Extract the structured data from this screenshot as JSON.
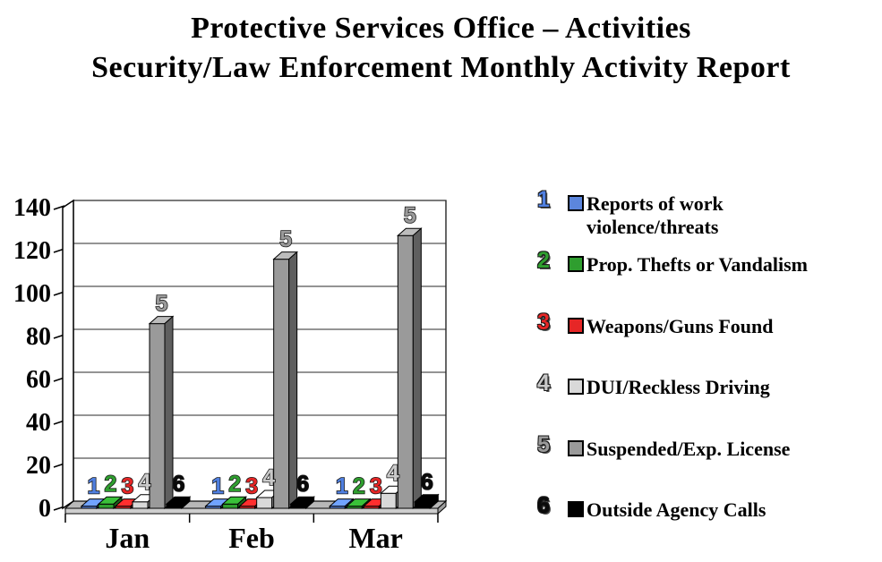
{
  "title": {
    "line1": "Protective Services Office – Activities",
    "line2": "Security/Law Enforcement Monthly Activity Report"
  },
  "chart_data": {
    "type": "bar",
    "style": "3d-column",
    "title": "Protective Services Office – Activities / Security/Law Enforcement Monthly Activity Report",
    "categories": [
      "Jan",
      "Feb",
      "Mar"
    ],
    "series": [
      {
        "number": "1",
        "name": "Reports of work violence/threats",
        "color": "#5c86dd",
        "number_color": "#4f7fe0",
        "values": [
          1,
          1,
          1
        ]
      },
      {
        "number": "2",
        "name": "Prop. Thefts or Vandalism",
        "color": "#2f9e2f",
        "number_color": "#2f9e2f",
        "values": [
          2,
          2,
          1
        ]
      },
      {
        "number": "3",
        "name": "Weapons/Guns Found",
        "color": "#e62626",
        "number_color": "#e62626",
        "values": [
          1,
          1,
          1
        ]
      },
      {
        "number": "4",
        "name": "DUI/Reckless Driving",
        "color": "#d9d9d9",
        "number_color": "#c9c9c9",
        "values": [
          3,
          5,
          7
        ]
      },
      {
        "number": "5",
        "name": "Suspended/Exp. License",
        "color": "#9a9a9a",
        "number_color": "#9a9a9a",
        "values": [
          86,
          116,
          127
        ]
      },
      {
        "number": "6",
        "name": "Outside Agency Calls",
        "color": "#000000",
        "number_color": "#0a0a0a",
        "values": [
          2,
          2,
          3
        ]
      }
    ],
    "xlabel": "",
    "ylabel": "",
    "ylim": [
      0,
      140
    ],
    "yticks": [
      0,
      20,
      40,
      60,
      80,
      100,
      120,
      140
    ],
    "grid": true,
    "legend_position": "right",
    "bar_labels": "series numbers shown above each bar"
  },
  "legend": {
    "row_tops": [
      15,
      83,
      152,
      220,
      289,
      357
    ]
  }
}
